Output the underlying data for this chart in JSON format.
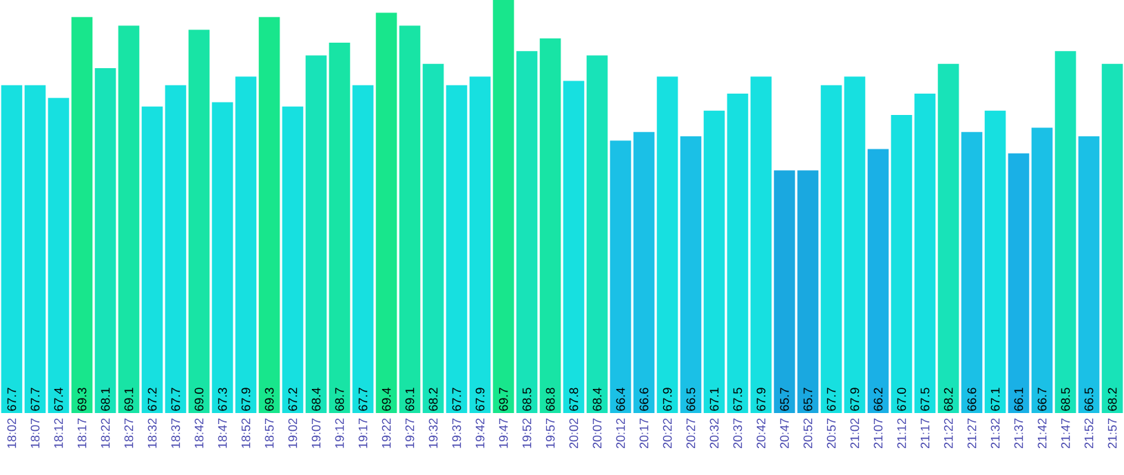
{
  "chart_data": {
    "type": "bar",
    "categories": [
      "18:02",
      "18:07",
      "18:12",
      "18:17",
      "18:22",
      "18:27",
      "18:32",
      "18:37",
      "18:42",
      "18:47",
      "18:52",
      "18:57",
      "19:02",
      "19:07",
      "19:12",
      "19:17",
      "19:22",
      "19:27",
      "19:32",
      "19:37",
      "19:42",
      "19:47",
      "19:52",
      "19:57",
      "20:02",
      "20:07",
      "20:12",
      "20:17",
      "20:22",
      "20:27",
      "20:32",
      "20:37",
      "20:42",
      "20:47",
      "20:52",
      "20:57",
      "21:02",
      "21:07",
      "21:12",
      "21:17",
      "21:22",
      "21:27",
      "21:32",
      "21:37",
      "21:42",
      "21:47",
      "21:52",
      "21:57"
    ],
    "values": [
      67.7,
      67.7,
      67.4,
      69.3,
      68.1,
      69.1,
      67.2,
      67.7,
      69.0,
      67.3,
      67.9,
      69.3,
      67.2,
      68.4,
      68.7,
      67.7,
      69.4,
      69.1,
      68.2,
      67.7,
      67.9,
      69.7,
      68.5,
      68.8,
      67.8,
      68.4,
      66.4,
      66.6,
      67.9,
      66.5,
      67.1,
      67.5,
      67.9,
      65.7,
      65.7,
      67.7,
      67.9,
      66.2,
      67.0,
      67.5,
      68.2,
      66.6,
      67.1,
      66.1,
      66.7,
      68.5,
      66.5,
      68.2
    ],
    "colors": [
      "#17e0e0",
      "#17e0e0",
      "#17e0e0",
      "#18e68c",
      "#18e3b8",
      "#18e4a5",
      "#17e0e0",
      "#17e0e0",
      "#18e4a5",
      "#17e0e0",
      "#17e0e0",
      "#18e68c",
      "#17e0e0",
      "#18e3b8",
      "#18e4a5",
      "#17e0e0",
      "#18e68c",
      "#18e4a5",
      "#18e3b8",
      "#17e0e0",
      "#17e0e0",
      "#18e68c",
      "#18e3b8",
      "#18e4a5",
      "#17e0e0",
      "#18e3b8",
      "#1bc0e6",
      "#1bc0e6",
      "#17e0e0",
      "#1bc0e6",
      "#17e0e0",
      "#17e0e0",
      "#17e0e0",
      "#1aa8e0",
      "#1aa8e0",
      "#17e0e0",
      "#17e0e0",
      "#1ab0e6",
      "#17e0e0",
      "#17e0e0",
      "#18e3b8",
      "#1bc0e6",
      "#17e0e0",
      "#1ab0e6",
      "#1bc0e6",
      "#18e3b8",
      "#1bc0e6",
      "#18e3b8"
    ],
    "ylim": [
      60,
      69.7
    ],
    "tick_labels": "x",
    "value_labels": [
      "67.7",
      "67.7",
      "67.4",
      "69.3",
      "68.1",
      "69.1",
      "67.2",
      "67.7",
      "69.0",
      "67.3",
      "67.9",
      "69.3",
      "67.2",
      "68.4",
      "68.7",
      "67.7",
      "69.4",
      "69.1",
      "68.2",
      "67.7",
      "67.9",
      "69.7",
      "68.5",
      "68.8",
      "67.8",
      "68.4",
      "66.4",
      "66.6",
      "67.9",
      "66.5",
      "67.1",
      "67.5",
      "67.9",
      "65.7",
      "65.7",
      "67.7",
      "67.9",
      "66.2",
      "67.0",
      "67.5",
      "68.2",
      "66.6",
      "67.1",
      "66.1",
      "66.7",
      "68.5",
      "66.5",
      "68.2"
    ]
  }
}
